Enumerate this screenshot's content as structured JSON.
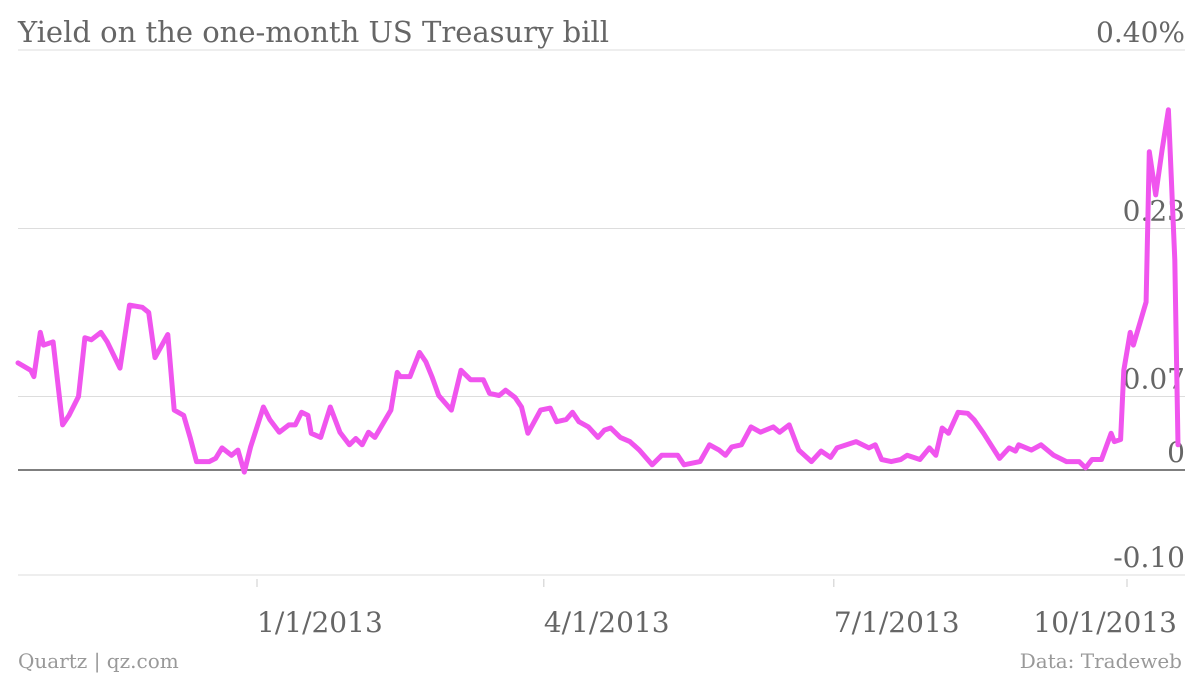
{
  "chart_data": {
    "type": "line",
    "title": "Yield on the one-month US Treasury bill",
    "credit": "Quartz | qz.com",
    "source": "Data: Tradeweb",
    "color": "#f055ee",
    "xlim": [
      "2012-10-18",
      "2013-10-17"
    ],
    "xticks": [
      {
        "value": "2013-01-01",
        "label": "1/1/2013"
      },
      {
        "value": "2013-04-01",
        "label": "4/1/2013"
      },
      {
        "value": "2013-07-01",
        "label": "7/1/2013"
      },
      {
        "value": "2013-10-01",
        "label": "10/1/2013"
      }
    ],
    "ylim": [
      -0.1,
      0.4
    ],
    "yticks": [
      {
        "value": -0.1,
        "label": "-0.10"
      },
      0,
      0.07,
      0.23,
      {
        "value": 0.4,
        "label": "0.40%"
      }
    ],
    "grid": true,
    "x": [
      "2012-10-18",
      "2012-10-22",
      "2012-10-23",
      "2012-10-25",
      "2012-10-26",
      "2012-10-29",
      "2012-11-01",
      "2012-11-03",
      "2012-11-06",
      "2012-11-08",
      "2012-11-10",
      "2012-11-13",
      "2012-11-15",
      "2012-11-19",
      "2012-11-22",
      "2012-11-26",
      "2012-11-28",
      "2012-11-30",
      "2012-12-04",
      "2012-12-06",
      "2012-12-09",
      "2012-12-11",
      "2012-12-13",
      "2012-12-17",
      "2012-12-19",
      "2012-12-21",
      "2012-12-24",
      "2012-12-26",
      "2012-12-28",
      "2012-12-30",
      "2013-01-03",
      "2013-01-05",
      "2013-01-08",
      "2013-01-11",
      "2013-01-13",
      "2013-01-15",
      "2013-01-17",
      "2013-01-18",
      "2013-01-21",
      "2013-01-24",
      "2013-01-27",
      "2013-01-30",
      "2013-02-01",
      "2013-02-03",
      "2013-02-05",
      "2013-02-07",
      "2013-02-12",
      "2013-02-14",
      "2013-02-15",
      "2013-02-18",
      "2013-02-21",
      "2013-02-23",
      "2013-02-25",
      "2013-02-27",
      "2013-03-03",
      "2013-03-06",
      "2013-03-09",
      "2013-03-13",
      "2013-03-15",
      "2013-03-18",
      "2013-03-20",
      "2013-03-23",
      "2013-03-25",
      "2013-03-27",
      "2013-03-31",
      "2013-04-03",
      "2013-04-05",
      "2013-04-08",
      "2013-04-10",
      "2013-04-12",
      "2013-04-15",
      "2013-04-18",
      "2013-04-20",
      "2013-04-22",
      "2013-04-25",
      "2013-04-28",
      "2013-05-01",
      "2013-05-05",
      "2013-05-08",
      "2013-05-13",
      "2013-05-15",
      "2013-05-20",
      "2013-05-23",
      "2013-05-26",
      "2013-05-28",
      "2013-05-30",
      "2013-06-02",
      "2013-06-05",
      "2013-06-08",
      "2013-06-12",
      "2013-06-14",
      "2013-06-17",
      "2013-06-20",
      "2013-06-24",
      "2013-06-27",
      "2013-06-30",
      "2013-07-02",
      "2013-07-08",
      "2013-07-12",
      "2013-07-14",
      "2013-07-16",
      "2013-07-19",
      "2013-07-22",
      "2013-07-24",
      "2013-07-28",
      "2013-07-31",
      "2013-08-02",
      "2013-08-04",
      "2013-08-06",
      "2013-08-09",
      "2013-08-12",
      "2013-08-14",
      "2013-08-17",
      "2013-08-22",
      "2013-08-25",
      "2013-08-27",
      "2013-08-28",
      "2013-09-01",
      "2013-09-04",
      "2013-09-08",
      "2013-09-12",
      "2013-09-16",
      "2013-09-18",
      "2013-09-20",
      "2013-09-23",
      "2013-09-26",
      "2013-09-27",
      "2013-09-29",
      "2013-09-30",
      "2013-10-02",
      "2013-10-03",
      "2013-10-07",
      "2013-10-08",
      "2013-10-10",
      "2013-10-12",
      "2013-10-14",
      "2013-10-16",
      "2013-10-17"
    ],
    "values": [
      0.102,
      0.095,
      0.089,
      0.131,
      0.119,
      0.122,
      0.043,
      0.052,
      0.07,
      0.126,
      0.124,
      0.131,
      0.122,
      0.097,
      0.157,
      0.155,
      0.15,
      0.107,
      0.129,
      0.057,
      0.052,
      0.031,
      0.008,
      0.008,
      0.011,
      0.021,
      0.014,
      0.019,
      -0.002,
      0.022,
      0.06,
      0.048,
      0.036,
      0.043,
      0.043,
      0.055,
      0.052,
      0.035,
      0.031,
      0.06,
      0.036,
      0.024,
      0.03,
      0.024,
      0.036,
      0.031,
      0.057,
      0.093,
      0.089,
      0.089,
      0.112,
      0.103,
      0.088,
      0.071,
      0.057,
      0.095,
      0.086,
      0.086,
      0.073,
      0.071,
      0.076,
      0.069,
      0.06,
      0.035,
      0.057,
      0.059,
      0.046,
      0.048,
      0.055,
      0.046,
      0.041,
      0.031,
      0.038,
      0.04,
      0.031,
      0.027,
      0.019,
      0.005,
      0.014,
      0.014,
      0.005,
      0.008,
      0.024,
      0.019,
      0.014,
      0.022,
      0.024,
      0.041,
      0.036,
      0.041,
      0.036,
      0.043,
      0.019,
      0.008,
      0.018,
      0.012,
      0.021,
      0.027,
      0.021,
      0.024,
      0.01,
      0.008,
      0.01,
      0.014,
      0.01,
      0.021,
      0.014,
      0.04,
      0.035,
      0.055,
      0.054,
      0.048,
      0.035,
      0.011,
      0.021,
      0.018,
      0.024,
      0.019,
      0.024,
      0.014,
      0.008,
      0.008,
      0.002,
      0.01,
      0.01,
      0.035,
      0.027,
      0.029,
      0.095,
      0.131,
      0.119,
      0.16,
      0.303,
      0.262,
      0.305,
      0.343,
      0.2,
      0.024
    ]
  }
}
